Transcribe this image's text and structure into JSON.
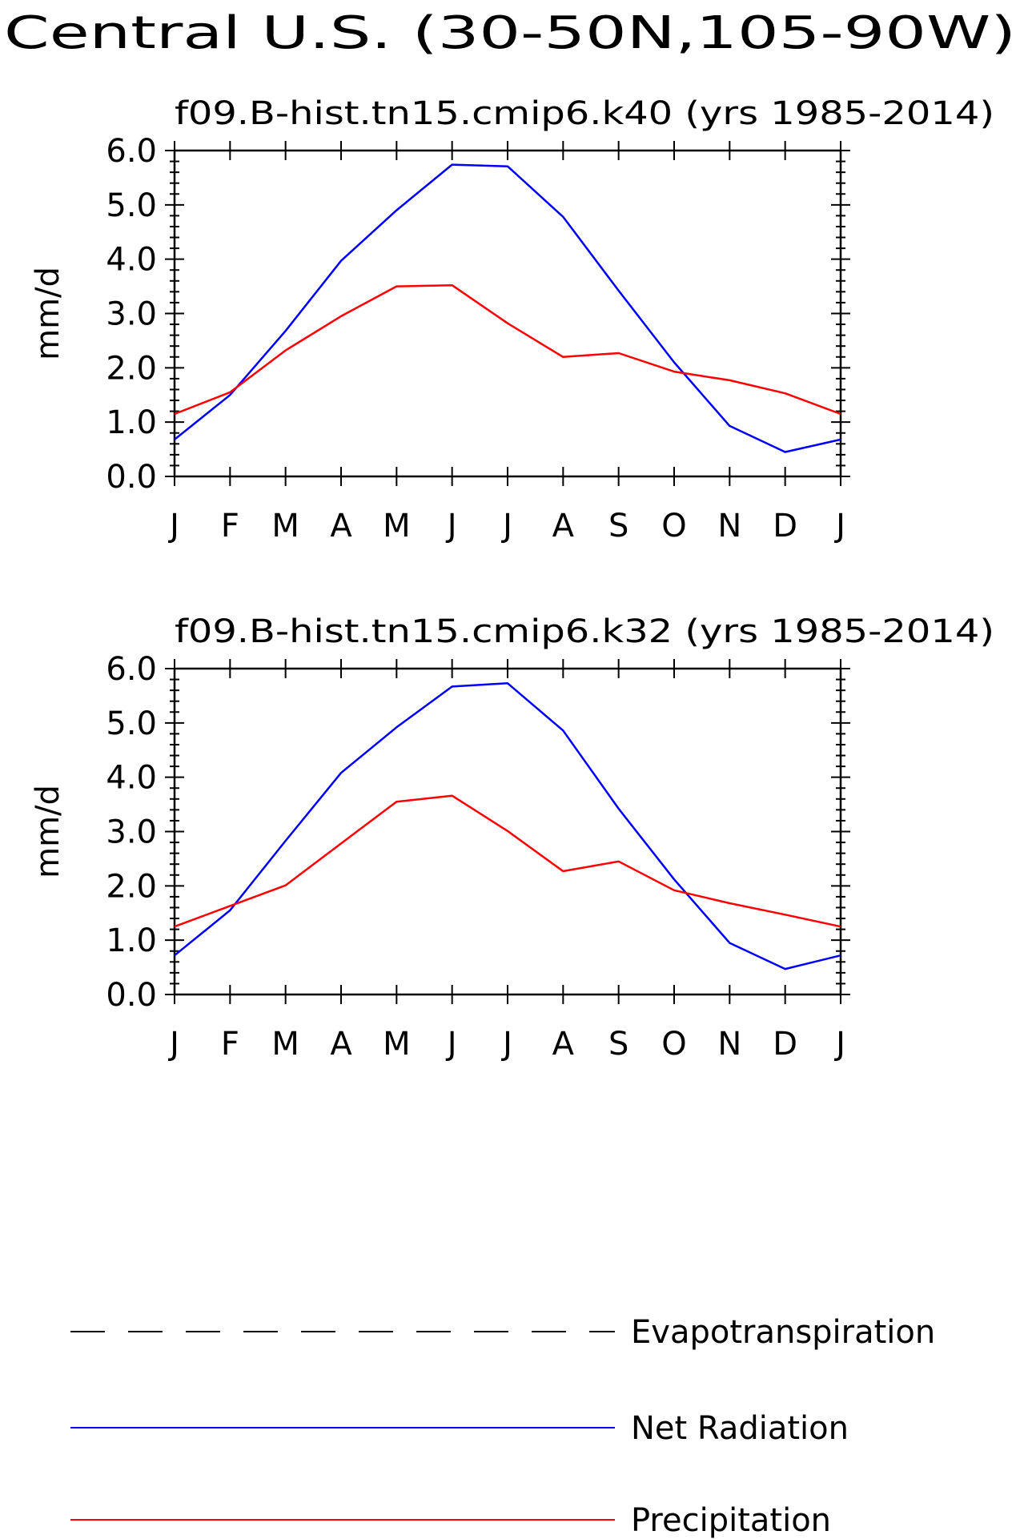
{
  "figure": {
    "title": "Central U.S. (30-50N,105-90W)"
  },
  "chart_data": [
    {
      "type": "line",
      "title": "f09.B-hist.tn15.cmip6.k40 (yrs 1985-2014)",
      "ylabel": "mm/d",
      "xlabel": "",
      "categories": [
        "J",
        "F",
        "M",
        "A",
        "M",
        "J",
        "J",
        "A",
        "S",
        "O",
        "N",
        "D",
        "J"
      ],
      "ylim": [
        0,
        6
      ],
      "yticks": [
        "0.0",
        "1.0",
        "2.0",
        "3.0",
        "4.0",
        "5.0",
        "6.0"
      ],
      "grid": false,
      "series": [
        {
          "name": "Net Radiation",
          "color": "#0000ff",
          "values": [
            0.68,
            1.5,
            2.68,
            3.97,
            4.9,
            5.74,
            5.71,
            4.78,
            3.42,
            2.1,
            0.93,
            0.45,
            0.68
          ]
        },
        {
          "name": "Precipitation",
          "color": "#ff0000",
          "values": [
            1.15,
            1.55,
            2.32,
            2.95,
            3.5,
            3.52,
            2.82,
            2.2,
            2.27,
            1.93,
            1.77,
            1.53,
            1.15
          ]
        }
      ]
    },
    {
      "type": "line",
      "title": "f09.B-hist.tn15.cmip6.k32 (yrs 1985-2014)",
      "ylabel": "mm/d",
      "xlabel": "",
      "categories": [
        "J",
        "F",
        "M",
        "A",
        "M",
        "J",
        "J",
        "A",
        "S",
        "O",
        "N",
        "D",
        "J"
      ],
      "ylim": [
        0,
        6
      ],
      "yticks": [
        "0.0",
        "1.0",
        "2.0",
        "3.0",
        "4.0",
        "5.0",
        "6.0"
      ],
      "grid": false,
      "series": [
        {
          "name": "Net Radiation",
          "color": "#0000ff",
          "values": [
            0.72,
            1.55,
            2.83,
            4.08,
            4.92,
            5.67,
            5.73,
            4.86,
            3.42,
            2.12,
            0.95,
            0.47,
            0.72
          ]
        },
        {
          "name": "Precipitation",
          "color": "#ff0000",
          "values": [
            1.25,
            1.63,
            2.01,
            2.78,
            3.55,
            3.66,
            3.01,
            2.27,
            2.45,
            1.92,
            1.68,
            1.47,
            1.25
          ]
        }
      ]
    }
  ],
  "legend": {
    "placement": "bottom",
    "items": [
      {
        "label": "Evapotranspiration",
        "color": "#000000",
        "style": "dashed"
      },
      {
        "label": "Net Radiation",
        "color": "#0000ff",
        "style": "solid"
      },
      {
        "label": "Precipitation",
        "color": "#ff0000",
        "style": "solid"
      }
    ]
  }
}
